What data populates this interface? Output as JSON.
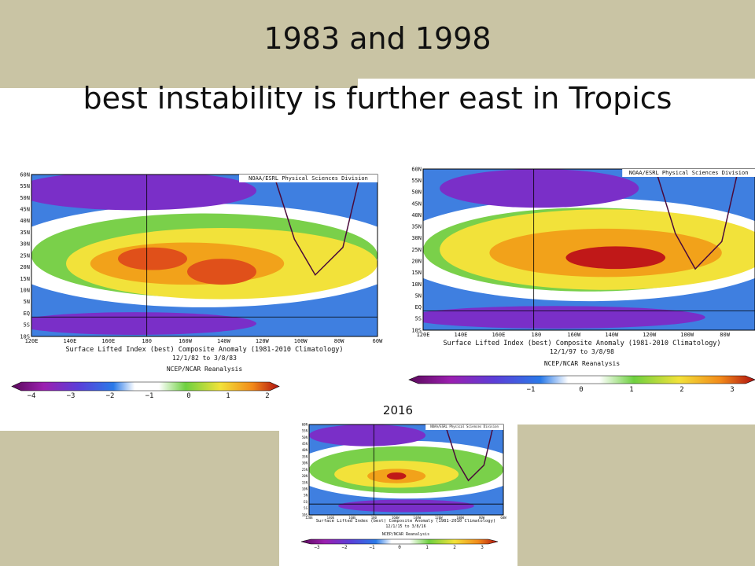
{
  "slide": {
    "title_line1": "1983 and 1998",
    "title_line2": "best instability is further east in Tropics",
    "label_2016": "2016"
  },
  "maps": [
    {
      "credit": "NOAA/ESRL Physical Sciences Division",
      "caption": "Surface Lifted Index (best)  Composite Anomaly  (1981-2010 Climatology)",
      "dates": "12/1/82  to 3/8/83",
      "source": "NCEP/NCAR Reanalysis",
      "lon_labels": [
        "120E",
        "140E",
        "160E",
        "180",
        "160W",
        "140W",
        "120W",
        "100W",
        "80W",
        "60W"
      ],
      "lat_labels": [
        "60N",
        "55N",
        "50N",
        "45N",
        "40N",
        "35N",
        "30N",
        "25N",
        "20N",
        "15N",
        "10N",
        "5N",
        "EQ",
        "5S",
        "10S"
      ],
      "colorbar_labels": [
        "−4",
        "−3",
        "−2",
        "−1",
        "0",
        "1",
        "2"
      ]
    },
    {
      "credit": "NOAA/ESRL Physical Sciences Division",
      "caption": "Surface Lifted Index (best)  Composite Anomaly  (1981-2010 Climatology)",
      "dates": "12/1/97  to 3/8/98",
      "source": "NCEP/NCAR Reanalysis",
      "lon_labels": [
        "120E",
        "140E",
        "160E",
        "180",
        "160W",
        "140W",
        "120W",
        "100W",
        "80W"
      ],
      "lat_labels": [
        "60N",
        "55N",
        "50N",
        "45N",
        "40N",
        "35N",
        "30N",
        "25N",
        "20N",
        "15N",
        "10N",
        "5N",
        "EQ",
        "5S",
        "10S"
      ],
      "colorbar_labels": [
        "−1",
        "0",
        "1",
        "2",
        "3"
      ]
    },
    {
      "credit": "NOAA/ESRL Physical Sciences Division",
      "caption": "Surface Lifted Index (best)  Composite Anomaly  (1981-2010 Climatology)",
      "dates": "12/1/15  to 3/8/16",
      "source": "NCEP/NCAR Reanalysis",
      "lon_labels": [
        "120E",
        "140E",
        "160E",
        "180",
        "160W",
        "140W",
        "120W",
        "100W",
        "80W",
        "60W"
      ],
      "lat_labels": [
        "60N",
        "55N",
        "50N",
        "45N",
        "40N",
        "35N",
        "30N",
        "25N",
        "20N",
        "15N",
        "10N",
        "5N",
        "EQ",
        "5S",
        "10S"
      ],
      "colorbar_labels": [
        "−3",
        "−2",
        "−1",
        "0",
        "1",
        "2",
        "3"
      ]
    }
  ]
}
